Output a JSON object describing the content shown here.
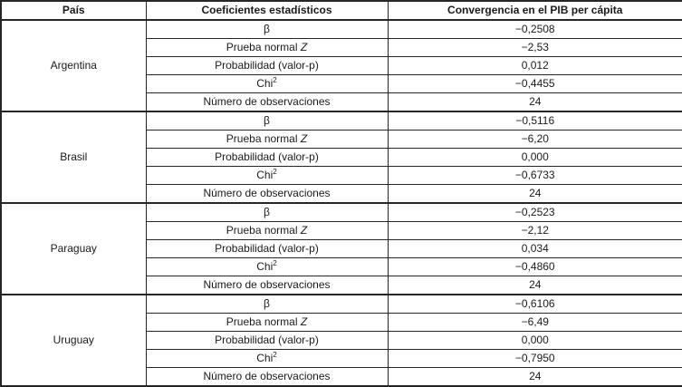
{
  "table": {
    "headers": [
      {
        "label": "País"
      },
      {
        "label": "Coeficientes estadísticos"
      },
      {
        "label": "Convergencia en el PIB per cápita"
      }
    ],
    "row_labels": [
      {
        "label": "β"
      },
      {
        "label": "Prueba normal ",
        "label_italic": "Z"
      },
      {
        "label": "Probabilidad (valor-p)"
      },
      {
        "label": "Chi",
        "label_sup": "2"
      },
      {
        "label": "Número de observaciones"
      }
    ],
    "groups": [
      {
        "country": "Argentina",
        "values": [
          "−0,2508",
          "−2,53",
          "0,012",
          "−0,4455",
          "24"
        ]
      },
      {
        "country": "Brasil",
        "values": [
          "−0,5116",
          "−6,20",
          "0,000",
          "−0,6733",
          "24"
        ]
      },
      {
        "country": "Paraguay",
        "values": [
          "−0,2523",
          "−2,12",
          "0,034",
          "−0,4860",
          "24"
        ]
      },
      {
        "country": "Uruguay",
        "values": [
          "−0,6106",
          "−6,49",
          "0,000",
          "−0,7950",
          "24"
        ]
      }
    ]
  },
  "colors": {
    "border": "#262626",
    "text": "#1a1a1a",
    "background": "#ffffff"
  }
}
